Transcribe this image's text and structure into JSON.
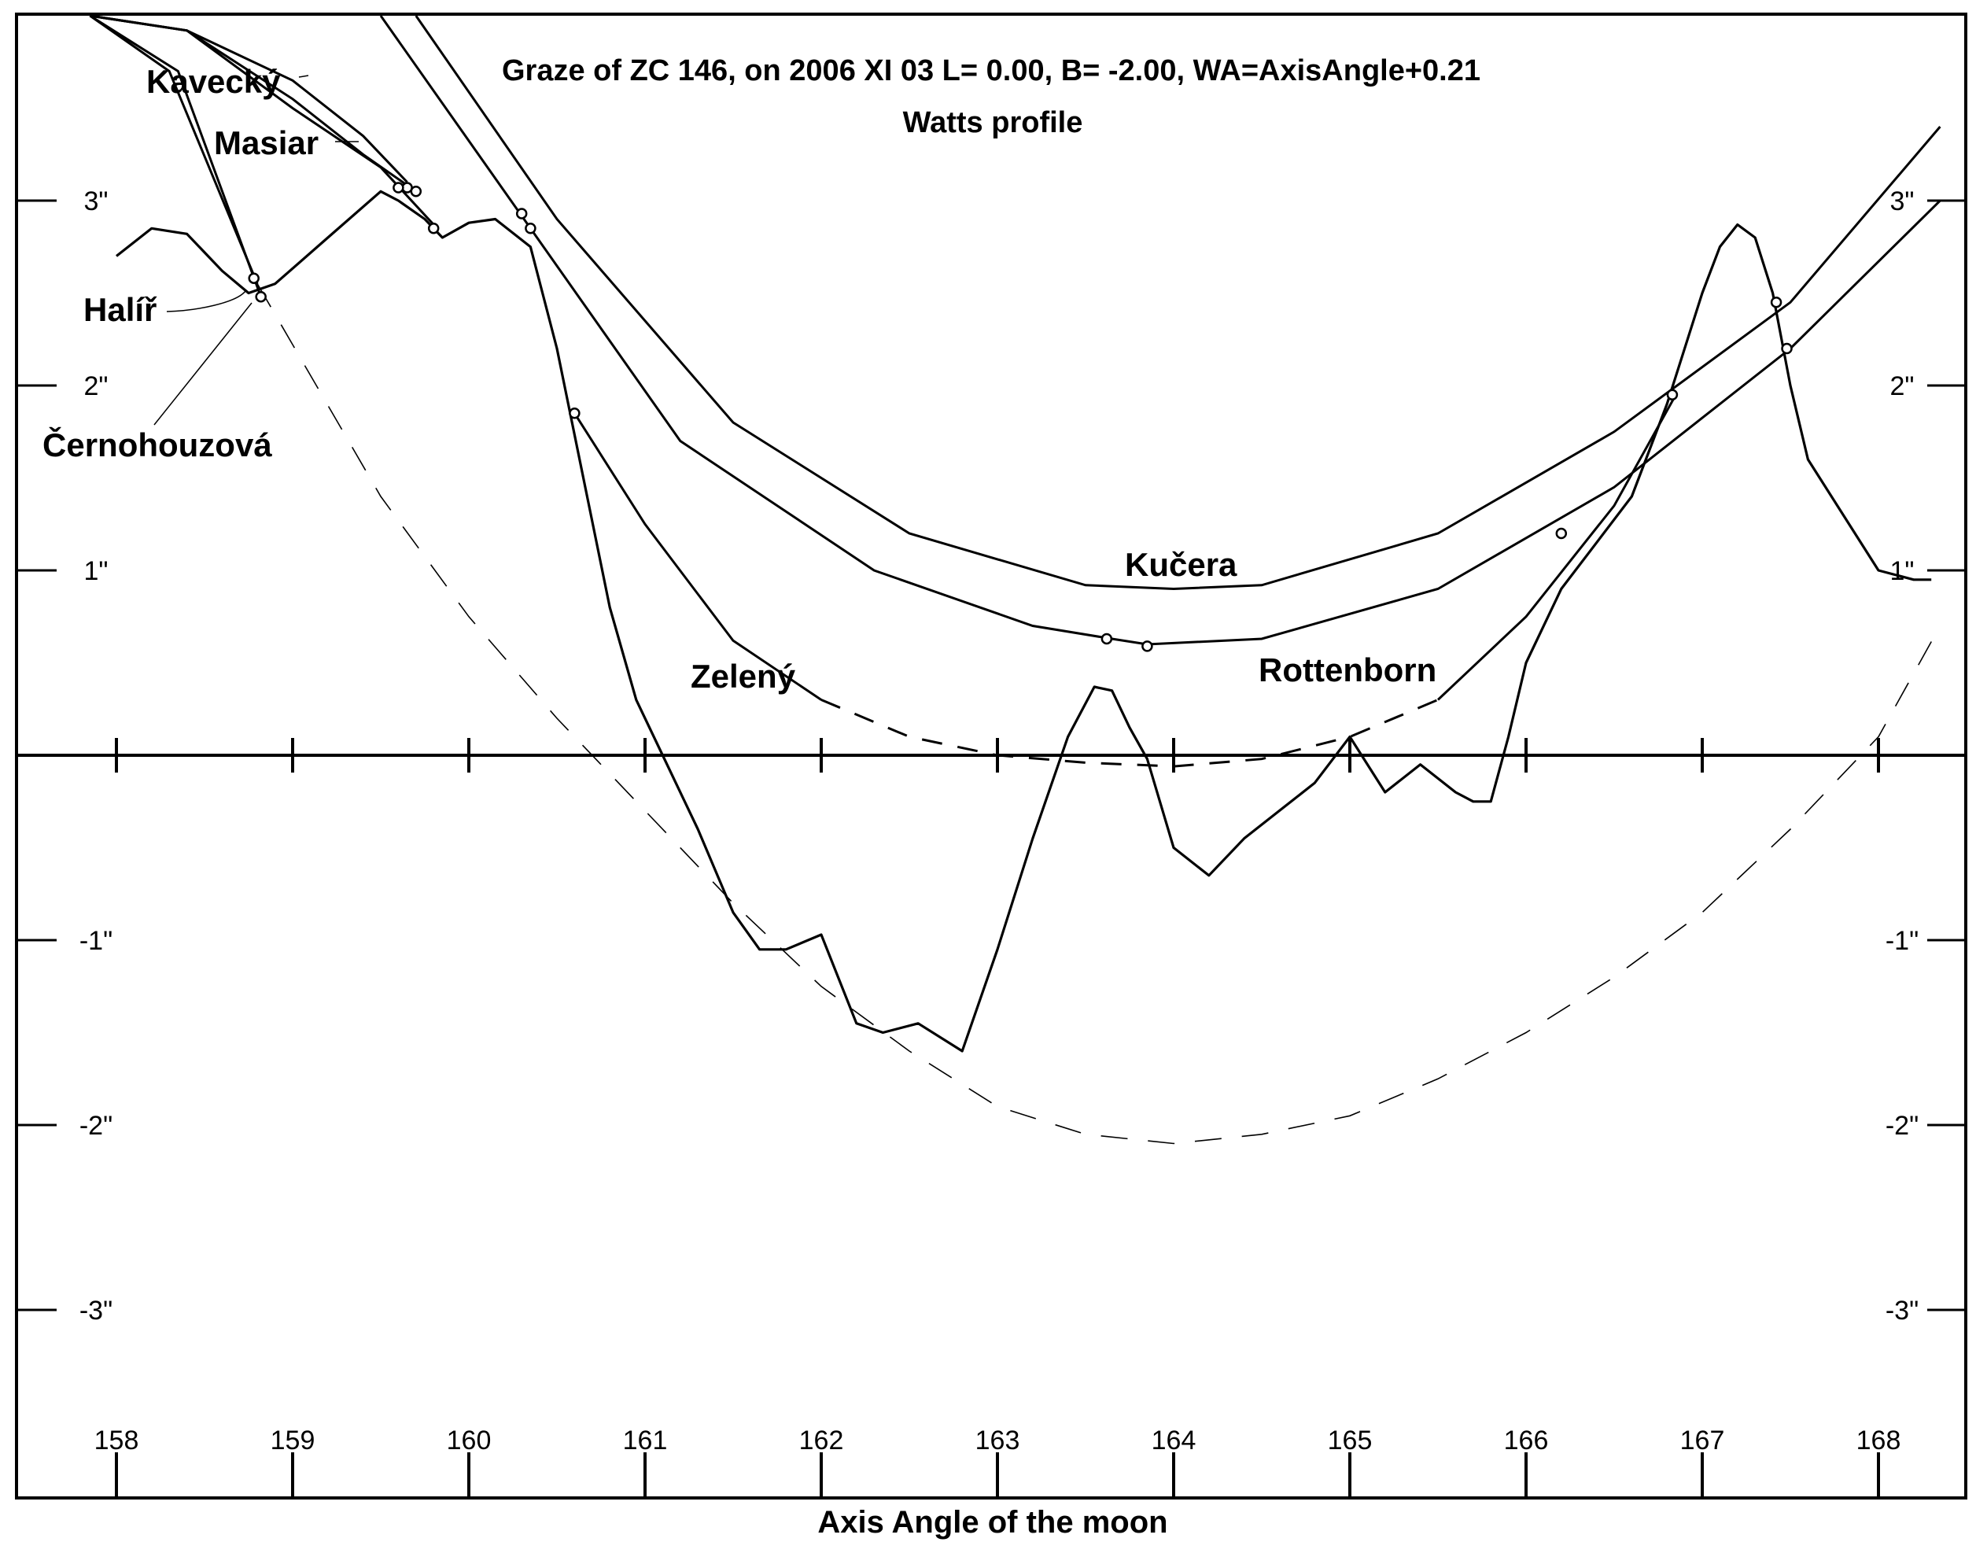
{
  "chart_data": {
    "type": "line",
    "title": "Graze of ZC 146, on 2006 XI 03    L=  0.00,  B= -2.00,  WA=AxisAngle+0.21",
    "subtitle": "Watts profile",
    "xlabel": "Axis Angle of the moon",
    "xlim": [
      157.9,
      168.35
    ],
    "ylim": [
      -4.0,
      4.0
    ],
    "x_ticks": [
      158,
      159,
      160,
      161,
      162,
      163,
      164,
      165,
      166,
      167,
      168
    ],
    "x_tick_labels": [
      "158",
      "159",
      "160",
      "161",
      "162",
      "163",
      "164",
      "165",
      "166",
      "167",
      "168"
    ],
    "y_ticks": [
      3,
      2,
      1,
      -1,
      -2,
      -3
    ],
    "y_tick_labels_left": [
      "3\"",
      "2\"",
      "1\"",
      "-1\"",
      "-2\"",
      "-3\""
    ],
    "y_tick_labels_right": [
      "3\"",
      "2\"",
      "1\"",
      "-1\"",
      "-2\"",
      "-3\""
    ],
    "grid": false,
    "lunar_profile": {
      "x": [
        158.0,
        158.2,
        158.4,
        158.6,
        158.75,
        158.9,
        159.2,
        159.5,
        159.6,
        159.75,
        159.85,
        160.0,
        160.15,
        160.35,
        160.5,
        160.65,
        160.8,
        160.95,
        161.1,
        161.3,
        161.5,
        161.65,
        161.8,
        162.0,
        162.2,
        162.35,
        162.55,
        162.8,
        163.0,
        163.2,
        163.4,
        163.55,
        163.65,
        163.75,
        163.85,
        164.0,
        164.2,
        164.4,
        164.6,
        164.8,
        165.0,
        165.2,
        165.4,
        165.6,
        165.7,
        165.8,
        165.9,
        166.0,
        166.2,
        166.4,
        166.6,
        166.8,
        167.0,
        167.1,
        167.2,
        167.3,
        167.4,
        167.5,
        167.6,
        167.8,
        168.0,
        168.2,
        168.3
      ],
      "y": [
        2.7,
        2.85,
        2.82,
        2.62,
        2.5,
        2.55,
        2.8,
        3.05,
        3.0,
        2.9,
        2.8,
        2.88,
        2.9,
        2.75,
        2.2,
        1.5,
        0.8,
        0.3,
        0.0,
        -0.4,
        -0.85,
        -1.05,
        -1.05,
        -0.97,
        -1.45,
        -1.5,
        -1.45,
        -1.6,
        -1.05,
        -0.45,
        0.1,
        0.37,
        0.35,
        0.15,
        -0.02,
        -0.5,
        -0.65,
        -0.45,
        -0.3,
        -0.15,
        0.1,
        -0.2,
        -0.05,
        -0.2,
        -0.25,
        -0.25,
        0.1,
        0.5,
        0.9,
        1.15,
        1.4,
        1.9,
        2.5,
        2.75,
        2.87,
        2.8,
        2.5,
        2.0,
        1.6,
        1.3,
        1.0,
        0.95,
        0.95
      ]
    },
    "lower_limb_arc": {
      "x": [
        158.8,
        159.5,
        160.0,
        160.5,
        161.0,
        161.5,
        162.0,
        162.5,
        163.0,
        163.5,
        164.0,
        164.5,
        165.0,
        165.5,
        166.0,
        166.5,
        167.0,
        167.5,
        168.0,
        168.35
      ],
      "y": [
        2.55,
        1.4,
        0.75,
        0.2,
        -0.3,
        -0.8,
        -1.25,
        -1.6,
        -1.9,
        -2.05,
        -2.1,
        -2.05,
        -1.95,
        -1.75,
        -1.5,
        -1.2,
        -0.85,
        -0.4,
        0.1,
        0.7
      ]
    },
    "observer_tracks": [
      {
        "name": "Kavecký",
        "x": [
          157.85,
          158.4,
          159.0,
          159.4,
          159.65
        ],
        "y": [
          4.05,
          3.92,
          3.65,
          3.35,
          3.1
        ],
        "events": [
          {
            "x": 159.65,
            "y": 3.07
          }
        ]
      },
      {
        "name": "Masiar",
        "x": [
          157.85,
          158.4,
          159.0,
          159.4,
          159.7
        ],
        "y": [
          4.05,
          3.92,
          3.55,
          3.25,
          3.05
        ],
        "events": [
          {
            "x": 159.6,
            "y": 3.07
          },
          {
            "x": 159.7,
            "y": 3.05
          }
        ]
      },
      {
        "name": "",
        "x": [
          157.85,
          158.4,
          159.0,
          159.5,
          159.82
        ],
        "y": [
          4.05,
          3.92,
          3.5,
          3.18,
          2.85
        ],
        "events": [
          {
            "x": 159.8,
            "y": 2.85
          }
        ]
      },
      {
        "name": "Halíř",
        "x": [
          157.85,
          158.3,
          158.8
        ],
        "y": [
          4.05,
          3.7,
          2.55
        ],
        "events": [
          {
            "x": 158.78,
            "y": 2.58
          }
        ]
      },
      {
        "name": "Černohouzová",
        "x": [
          157.85,
          158.35,
          158.82
        ],
        "y": [
          4.05,
          3.7,
          2.48
        ],
        "events": [
          {
            "x": 158.82,
            "y": 2.48
          }
        ]
      },
      {
        "name": "Kučera",
        "x": [
          159.7,
          160.5,
          161.5,
          162.5,
          163.5,
          164.0,
          164.5,
          165.5,
          166.5,
          167.5,
          168.35
        ],
        "y": [
          4.0,
          2.9,
          1.8,
          1.2,
          0.92,
          0.9,
          0.92,
          1.2,
          1.75,
          2.45,
          3.4
        ],
        "events": [
          {
            "x": 160.3,
            "y": 2.93
          },
          {
            "x": 167.42,
            "y": 2.45
          }
        ]
      },
      {
        "name": "Rottenborn",
        "x": [
          159.5,
          160.35,
          161.2,
          162.3,
          163.2,
          163.65,
          163.85,
          164.5,
          165.5,
          166.5,
          167.5,
          168.35
        ],
        "y": [
          4.0,
          2.85,
          1.7,
          1.0,
          0.7,
          0.63,
          0.6,
          0.63,
          0.9,
          1.45,
          2.2,
          3.0
        ],
        "events": [
          {
            "x": 160.35,
            "y": 2.85
          },
          {
            "x": 163.62,
            "y": 0.63
          },
          {
            "x": 163.85,
            "y": 0.59
          },
          {
            "x": 167.48,
            "y": 2.2
          }
        ]
      },
      {
        "name": "Zelený",
        "x": [
          160.6,
          161.0,
          161.5,
          162.0,
          162.5,
          163.0,
          163.5,
          164.0,
          164.5,
          165.0,
          165.5,
          166.0,
          166.5,
          166.85
        ],
        "y": [
          1.85,
          1.25,
          0.62,
          0.3,
          0.1,
          0.0,
          -0.04,
          -0.06,
          -0.02,
          0.1,
          0.3,
          0.75,
          1.35,
          1.95
        ],
        "events": [
          {
            "x": 160.6,
            "y": 1.85
          },
          {
            "x": 166.2,
            "y": 1.2
          },
          {
            "x": 166.83,
            "y": 1.95
          }
        ]
      }
    ],
    "labels": {
      "kavecky": "Kavecký",
      "masiar": "Masiar",
      "halir": "Halíř",
      "cernohouzova": "Černohouzová",
      "kucera": "Kučera",
      "zeleny": "Zelený",
      "rottenborn": "Rottenborn"
    }
  }
}
